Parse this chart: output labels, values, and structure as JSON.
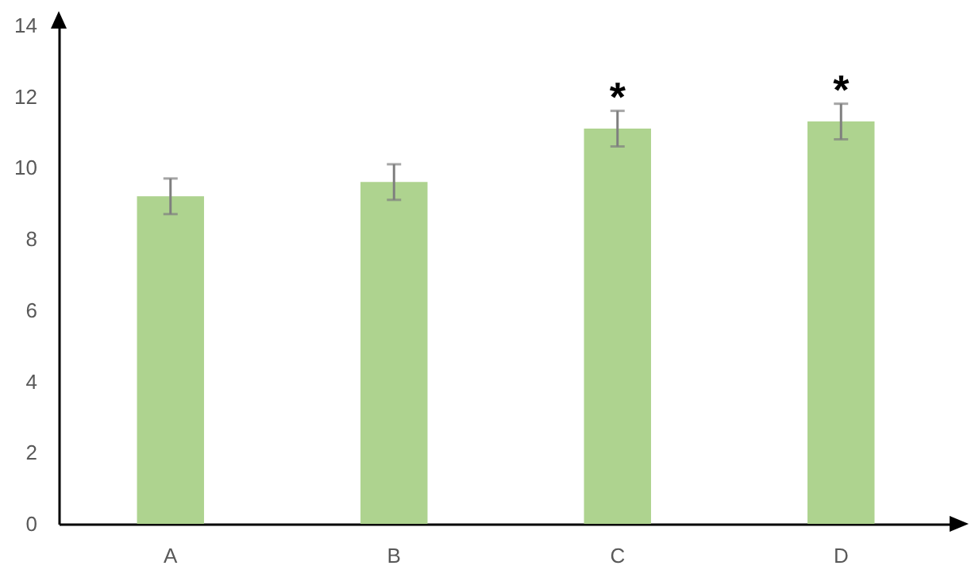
{
  "chart_data": {
    "type": "bar",
    "categories": [
      "A",
      "B",
      "C",
      "D"
    ],
    "values": [
      9.2,
      9.6,
      11.1,
      11.3
    ],
    "errors": [
      0.5,
      0.5,
      0.5,
      0.5
    ],
    "color": "#aed38f",
    "ylim": [
      0,
      14
    ],
    "yticks": [
      0,
      2,
      4,
      6,
      8,
      10,
      12,
      14
    ],
    "annotations": [
      "*",
      "*"
    ]
  }
}
